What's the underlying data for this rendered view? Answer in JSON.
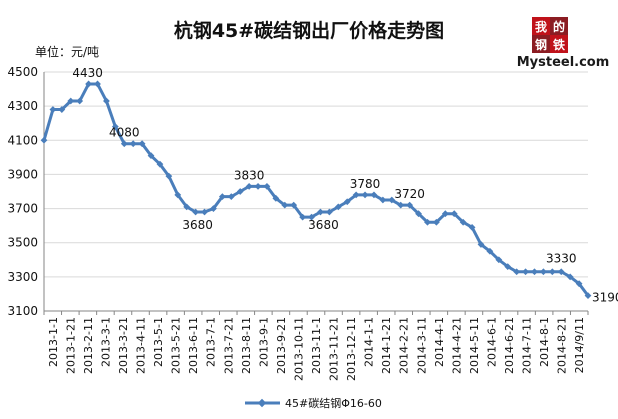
{
  "title": "杭钢45#碳结钢出厂价格走势图",
  "unit_label": "单位：元/吨",
  "logo": {
    "cjk": [
      "我",
      "的",
      "钢",
      "铁"
    ],
    "word": "Mysteel.com"
  },
  "colors": {
    "series": "#4a7ebb",
    "grid": "#d9d9d9",
    "axis": "#868686"
  },
  "chart_data": {
    "type": "line",
    "title": "杭钢45#碳结钢出厂价格走势图",
    "ylabel": "单位：元/吨",
    "xlabel": "",
    "ylim": [
      3100,
      4500
    ],
    "yticks": [
      3100,
      3300,
      3500,
      3700,
      3900,
      4100,
      4300,
      4500
    ],
    "grid": true,
    "legend_position": "bottom",
    "x_tick_labels": [
      "2013-1-1",
      "2013-1-21",
      "2013-2-11",
      "2013-3-1",
      "2013-3-21",
      "2013-4-11",
      "2013-5-1",
      "2013-5-21",
      "2013-6-11",
      "2013-7-1",
      "2013-7-21",
      "2013-8-11",
      "2013-9-1",
      "2013-9-21",
      "2013-10-11",
      "2013-11-1",
      "2013-11-21",
      "2013-12-11",
      "2014-1-1",
      "2014-1-21",
      "2014-2-21",
      "2014-3-11",
      "2014-4-1",
      "2014-4-21",
      "2014-5-11",
      "2014-6-1",
      "2014-6-21",
      "2014-7-11",
      "2014-8-1",
      "2014-8-21",
      "2014/9/11"
    ],
    "series": [
      {
        "name": "45#碳结钢Φ16-60",
        "values": [
          4100,
          4280,
          4280,
          4330,
          4330,
          4430,
          4430,
          4330,
          4180,
          4080,
          4080,
          4080,
          4010,
          3960,
          3890,
          3780,
          3710,
          3680,
          3680,
          3700,
          3770,
          3770,
          3800,
          3830,
          3830,
          3830,
          3760,
          3720,
          3720,
          3650,
          3650,
          3680,
          3680,
          3710,
          3740,
          3780,
          3780,
          3780,
          3750,
          3750,
          3720,
          3720,
          3670,
          3620,
          3620,
          3670,
          3670,
          3620,
          3590,
          3490,
          3450,
          3400,
          3360,
          3330,
          3330,
          3330,
          3330,
          3330,
          3330,
          3300,
          3260,
          3190
        ]
      }
    ],
    "data_labels": [
      {
        "text": "4430",
        "index": 5
      },
      {
        "text": "4080",
        "index": 9
      },
      {
        "text": "3680",
        "index": 17
      },
      {
        "text": "3830",
        "index": 23
      },
      {
        "text": "3680",
        "index": 31
      },
      {
        "text": "3780",
        "index": 36
      },
      {
        "text": "3720",
        "index": 41
      },
      {
        "text": "3330",
        "index": 58
      },
      {
        "text": "3190",
        "index": 61
      }
    ]
  }
}
